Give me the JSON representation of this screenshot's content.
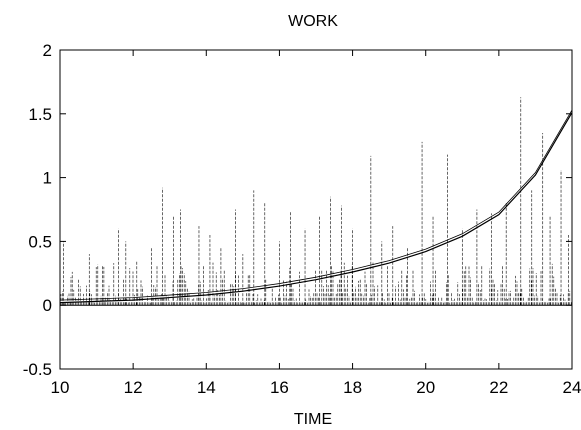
{
  "chart_data": {
    "type": "line",
    "title": "WORK",
    "xlabel": "TIME",
    "ylabel": "",
    "xlim": [
      10,
      24
    ],
    "ylim": [
      -0.5,
      2
    ],
    "xticks": [
      10,
      12,
      14,
      16,
      18,
      20,
      22,
      24
    ],
    "xtick_labels": [
      "10",
      "12",
      "14",
      "16",
      "18",
      "20",
      "22",
      "24"
    ],
    "yticks": [
      -0.5,
      0,
      0.5,
      1,
      1.5,
      2
    ],
    "ytick_labels": [
      "-0.5",
      "0",
      "0.5",
      "1",
      "1.5",
      "2"
    ],
    "grid": false,
    "series": [
      {
        "style": "smooth-curve",
        "x": [
          10,
          11,
          12,
          13,
          14,
          15,
          16,
          17,
          18,
          19,
          20,
          21,
          22,
          23,
          24
        ],
        "values": [
          0.02,
          0.03,
          0.04,
          0.06,
          0.08,
          0.11,
          0.15,
          0.2,
          0.26,
          0.33,
          0.42,
          0.54,
          0.71,
          1.02,
          1.51
        ]
      },
      {
        "style": "spikes",
        "x": [
          10.1,
          10.3,
          10.8,
          11.2,
          11.6,
          11.8,
          12.1,
          12.5,
          12.8,
          13.1,
          13.3,
          13.8,
          14.1,
          14.4,
          14.8,
          15.0,
          15.3,
          15.6,
          16.0,
          16.3,
          16.7,
          17.1,
          17.4,
          17.7,
          18.0,
          18.5,
          18.8,
          19.1,
          19.5,
          19.9,
          20.2,
          20.6,
          21.0,
          21.4,
          21.8,
          22.2,
          22.6,
          22.9,
          23.2,
          23.4,
          23.7,
          23.9
        ],
        "values": [
          0.5,
          0.22,
          0.4,
          0.3,
          0.6,
          0.5,
          0.35,
          0.45,
          0.92,
          0.7,
          0.75,
          0.62,
          0.55,
          0.45,
          0.75,
          0.4,
          0.9,
          0.8,
          0.5,
          0.74,
          0.6,
          0.7,
          0.85,
          0.78,
          0.6,
          1.17,
          0.5,
          0.62,
          0.45,
          1.28,
          0.7,
          1.18,
          0.6,
          0.75,
          0.72,
          0.8,
          1.63,
          0.9,
          1.35,
          0.7,
          1.06,
          0.55
        ]
      }
    ]
  }
}
